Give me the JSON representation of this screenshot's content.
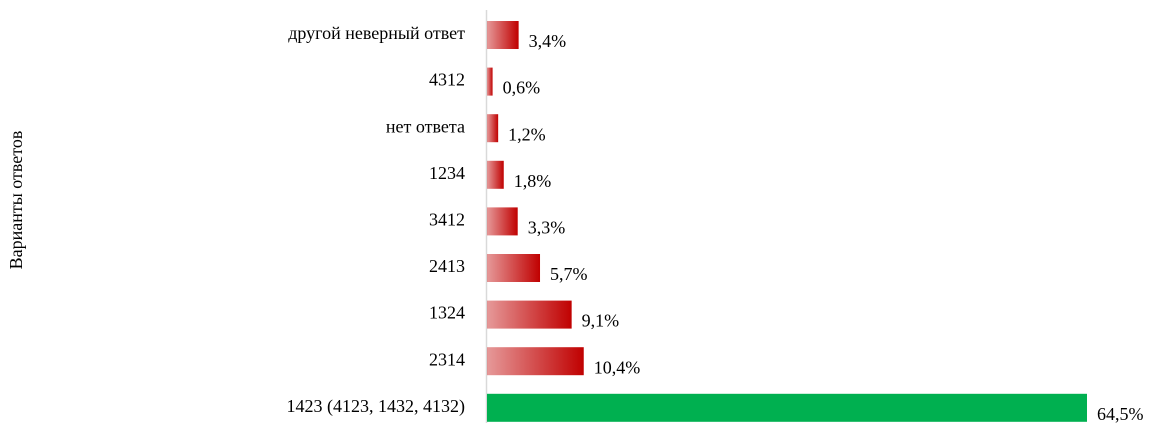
{
  "chart_data": {
    "type": "barh",
    "y_axis_label": "Варианты ответов",
    "categories": [
      "другой неверный ответ",
      "4312",
      "нет ответа",
      "1234",
      "3412",
      "2413",
      "1324",
      "2314",
      "1423 (4123, 1432, 4132)"
    ],
    "values": [
      3.4,
      0.6,
      1.2,
      1.8,
      3.3,
      5.7,
      9.1,
      10.4,
      64.5
    ],
    "value_labels": [
      "3,4%",
      "0,6%",
      "1,2%",
      "1,8%",
      "3,3%",
      "5,7%",
      "9,1%",
      "10,4%",
      "64,5%"
    ],
    "colors": [
      "#c00000",
      "#c00000",
      "#c00000",
      "#c00000",
      "#c00000",
      "#c00000",
      "#c00000",
      "#c00000",
      "#00b050"
    ],
    "gradient": [
      true,
      true,
      true,
      true,
      true,
      true,
      true,
      true,
      false
    ]
  }
}
